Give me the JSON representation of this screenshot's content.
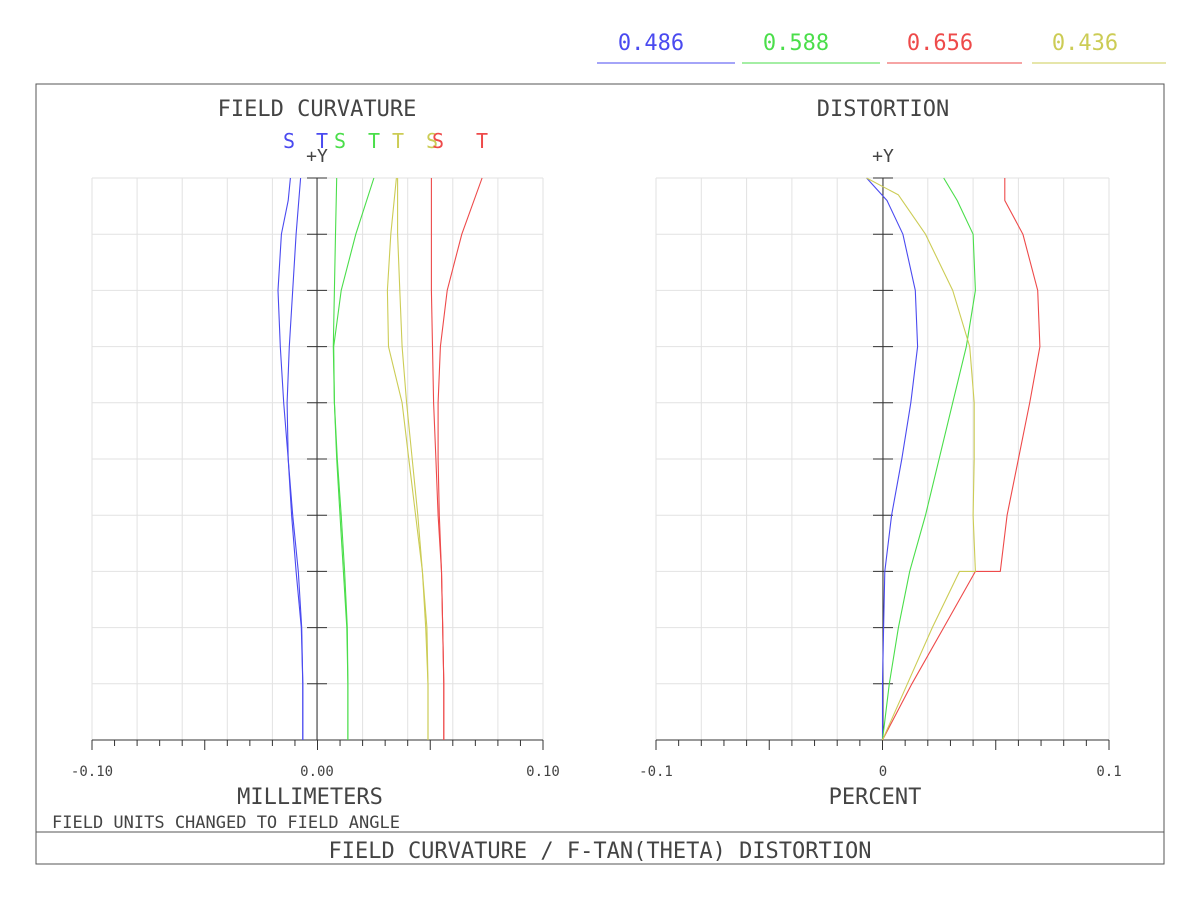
{
  "colors": {
    "blue": "#4a4af0",
    "green": "#4ade4a",
    "red": "#ee4a4a",
    "yellow": "#cccc55",
    "frame": "#555555",
    "grid": "#e2e2e2",
    "axis": "#333333",
    "text": "#444444"
  },
  "legend": [
    {
      "label": "0.486",
      "color": "#4a4af0"
    },
    {
      "label": "0.588",
      "color": "#4ade4a"
    },
    {
      "label": "0.656",
      "color": "#ee4a4a"
    },
    {
      "label": "0.436",
      "color": "#cccc55"
    }
  ],
  "field_curvature": {
    "title": "FIELD CURVATURE",
    "y_label": "+Y",
    "x_unit": "MILLIMETERS",
    "x_ticks": [
      "-0.10",
      "0.00",
      "0.10"
    ],
    "st_labels": [
      {
        "text": "S",
        "color": "#4a4af0"
      },
      {
        "text": "T",
        "color": "#4a4af0"
      },
      {
        "text": "S",
        "color": "#4ade4a"
      },
      {
        "text": "T",
        "color": "#4ade4a"
      },
      {
        "text": "T",
        "color": "#cccc55"
      },
      {
        "text": "S",
        "color": "#cccc55"
      },
      {
        "text": "S",
        "color": "#ee4a4a"
      },
      {
        "text": "T",
        "color": "#ee4a4a"
      }
    ]
  },
  "distortion": {
    "title": "DISTORTION",
    "y_label": "+Y",
    "x_unit": "PERCENT",
    "x_ticks": [
      "-0.1",
      "0",
      "0.1"
    ]
  },
  "footer_note": "FIELD UNITS CHANGED TO FIELD ANGLE",
  "footer_title": "FIELD CURVATURE / F-TAN(THETA) DISTORTION",
  "chart_data": [
    {
      "type": "line",
      "title": "FIELD CURVATURE",
      "xlabel": "MILLIMETERS",
      "ylabel": "+Y",
      "xlim": [
        -0.1,
        0.1
      ],
      "ylim": [
        0,
        1
      ],
      "grid": true,
      "series": [
        {
          "name": "0.486 S",
          "color": "#4a4af0",
          "points": [
            [
              -0.0065,
              0
            ],
            [
              -0.0065,
              0.1
            ],
            [
              -0.007,
              0.2
            ],
            [
              -0.0085,
              0.3
            ],
            [
              -0.011,
              0.4
            ],
            [
              -0.013,
              0.5
            ],
            [
              -0.015,
              0.6
            ],
            [
              -0.0165,
              0.7
            ],
            [
              -0.0175,
              0.8
            ],
            [
              -0.016,
              0.9
            ],
            [
              -0.013,
              0.96
            ],
            [
              -0.012,
              1.0
            ]
          ]
        },
        {
          "name": "0.486 T",
          "color": "#4a4af0",
          "points": [
            [
              -0.0065,
              0
            ],
            [
              -0.0065,
              0.1
            ],
            [
              -0.0072,
              0.2
            ],
            [
              -0.0095,
              0.3
            ],
            [
              -0.0115,
              0.4
            ],
            [
              -0.013,
              0.5
            ],
            [
              -0.0135,
              0.6
            ],
            [
              -0.0125,
              0.7
            ],
            [
              -0.011,
              0.8
            ],
            [
              -0.0095,
              0.9
            ],
            [
              -0.0075,
              1.0
            ]
          ]
        },
        {
          "name": "0.588 S",
          "color": "#4ade4a",
          "points": [
            [
              0.0135,
              0
            ],
            [
              0.0135,
              0.1
            ],
            [
              0.013,
              0.2
            ],
            [
              0.0115,
              0.3
            ],
            [
              0.01,
              0.4
            ],
            [
              0.0085,
              0.5
            ],
            [
              0.0075,
              0.6
            ],
            [
              0.007,
              0.7
            ],
            [
              0.0075,
              0.8
            ],
            [
              0.008,
              0.9
            ],
            [
              0.0085,
              1.0
            ]
          ]
        },
        {
          "name": "0.588 T",
          "color": "#4ade4a",
          "points": [
            [
              0.0135,
              0
            ],
            [
              0.0135,
              0.1
            ],
            [
              0.0132,
              0.2
            ],
            [
              0.012,
              0.3
            ],
            [
              0.0105,
              0.4
            ],
            [
              0.0088,
              0.5
            ],
            [
              0.0075,
              0.6
            ],
            [
              0.0072,
              0.7
            ],
            [
              0.0105,
              0.8
            ],
            [
              0.017,
              0.9
            ],
            [
              0.025,
              1.0
            ]
          ]
        },
        {
          "name": "0.436 S",
          "color": "#cccc55",
          "points": [
            [
              0.049,
              0
            ],
            [
              0.049,
              0.1
            ],
            [
              0.048,
              0.2
            ],
            [
              0.0465,
              0.3
            ],
            [
              0.0445,
              0.4
            ],
            [
              0.042,
              0.5
            ],
            [
              0.0395,
              0.6
            ],
            [
              0.0375,
              0.7
            ],
            [
              0.0365,
              0.8
            ],
            [
              0.0355,
              0.9
            ],
            [
              0.0355,
              1.0
            ]
          ]
        },
        {
          "name": "0.436 T",
          "color": "#cccc55",
          "points": [
            [
              0.049,
              0
            ],
            [
              0.049,
              0.1
            ],
            [
              0.0485,
              0.2
            ],
            [
              0.0465,
              0.3
            ],
            [
              0.0435,
              0.4
            ],
            [
              0.0405,
              0.5
            ],
            [
              0.0375,
              0.6
            ],
            [
              0.0315,
              0.7
            ],
            [
              0.031,
              0.8
            ],
            [
              0.0325,
              0.9
            ],
            [
              0.035,
              1.0
            ]
          ]
        },
        {
          "name": "0.656 S",
          "color": "#ee4a4a",
          "points": [
            [
              0.056,
              0
            ],
            [
              0.056,
              0.1
            ],
            [
              0.0555,
              0.2
            ],
            [
              0.055,
              0.3
            ],
            [
              0.0535,
              0.4
            ],
            [
              0.0525,
              0.5
            ],
            [
              0.0515,
              0.6
            ],
            [
              0.051,
              0.7
            ],
            [
              0.0505,
              0.8
            ],
            [
              0.0505,
              0.9
            ],
            [
              0.0505,
              1.0
            ]
          ]
        },
        {
          "name": "0.656 T",
          "color": "#ee4a4a",
          "points": [
            [
              0.056,
              0
            ],
            [
              0.056,
              0.1
            ],
            [
              0.0555,
              0.2
            ],
            [
              0.055,
              0.3
            ],
            [
              0.054,
              0.4
            ],
            [
              0.0535,
              0.5
            ],
            [
              0.0535,
              0.6
            ],
            [
              0.0545,
              0.7
            ],
            [
              0.0575,
              0.8
            ],
            [
              0.064,
              0.9
            ],
            [
              0.073,
              1.0
            ]
          ]
        }
      ]
    },
    {
      "type": "line",
      "title": "DISTORTION",
      "xlabel": "PERCENT",
      "ylabel": "+Y",
      "xlim": [
        -0.1,
        0.1
      ],
      "ylim": [
        0,
        1
      ],
      "grid": true,
      "series": [
        {
          "name": "0.486",
          "color": "#4a4af0",
          "points": [
            [
              0,
              0
            ],
            [
              0,
              0.1
            ],
            [
              0.0005,
              0.2
            ],
            [
              0.001,
              0.3
            ],
            [
              0.004,
              0.4
            ],
            [
              0.0085,
              0.5
            ],
            [
              0.0125,
              0.6
            ],
            [
              0.0155,
              0.7
            ],
            [
              0.0145,
              0.8
            ],
            [
              0.009,
              0.9
            ],
            [
              0.002,
              0.96
            ],
            [
              -0.007,
              1.0
            ]
          ]
        },
        {
          "name": "0.588",
          "color": "#4ade4a",
          "points": [
            [
              0,
              0
            ],
            [
              0.003,
              0.1
            ],
            [
              0.007,
              0.2
            ],
            [
              0.012,
              0.3
            ],
            [
              0.019,
              0.4
            ],
            [
              0.025,
              0.5
            ],
            [
              0.031,
              0.6
            ],
            [
              0.037,
              0.7
            ],
            [
              0.041,
              0.8
            ],
            [
              0.04,
              0.9
            ],
            [
              0.033,
              0.96
            ],
            [
              0.027,
              1.0
            ]
          ]
        },
        {
          "name": "0.656",
          "color": "#ee4a4a",
          "points": [
            [
              0,
              0
            ],
            [
              0.013,
              0.1
            ],
            [
              0.027,
              0.2
            ],
            [
              0.041,
              0.3
            ],
            [
              0.052,
              0.3
            ],
            [
              0.055,
              0.4
            ],
            [
              0.06,
              0.5
            ],
            [
              0.065,
              0.6
            ],
            [
              0.0695,
              0.7
            ],
            [
              0.0685,
              0.8
            ],
            [
              0.062,
              0.9
            ],
            [
              0.054,
              0.96
            ],
            [
              0.054,
              1.0
            ]
          ]
        },
        {
          "name": "0.436",
          "color": "#cccc55",
          "points": [
            [
              0,
              0
            ],
            [
              0.011,
              0.1
            ],
            [
              0.022,
              0.2
            ],
            [
              0.034,
              0.3
            ],
            [
              0.041,
              0.3
            ],
            [
              0.04,
              0.4
            ],
            [
              0.0405,
              0.5
            ],
            [
              0.0405,
              0.6
            ],
            [
              0.0385,
              0.7
            ],
            [
              0.031,
              0.8
            ],
            [
              0.019,
              0.9
            ],
            [
              0.007,
              0.97
            ],
            [
              -0.007,
              1.0
            ]
          ]
        }
      ]
    }
  ]
}
